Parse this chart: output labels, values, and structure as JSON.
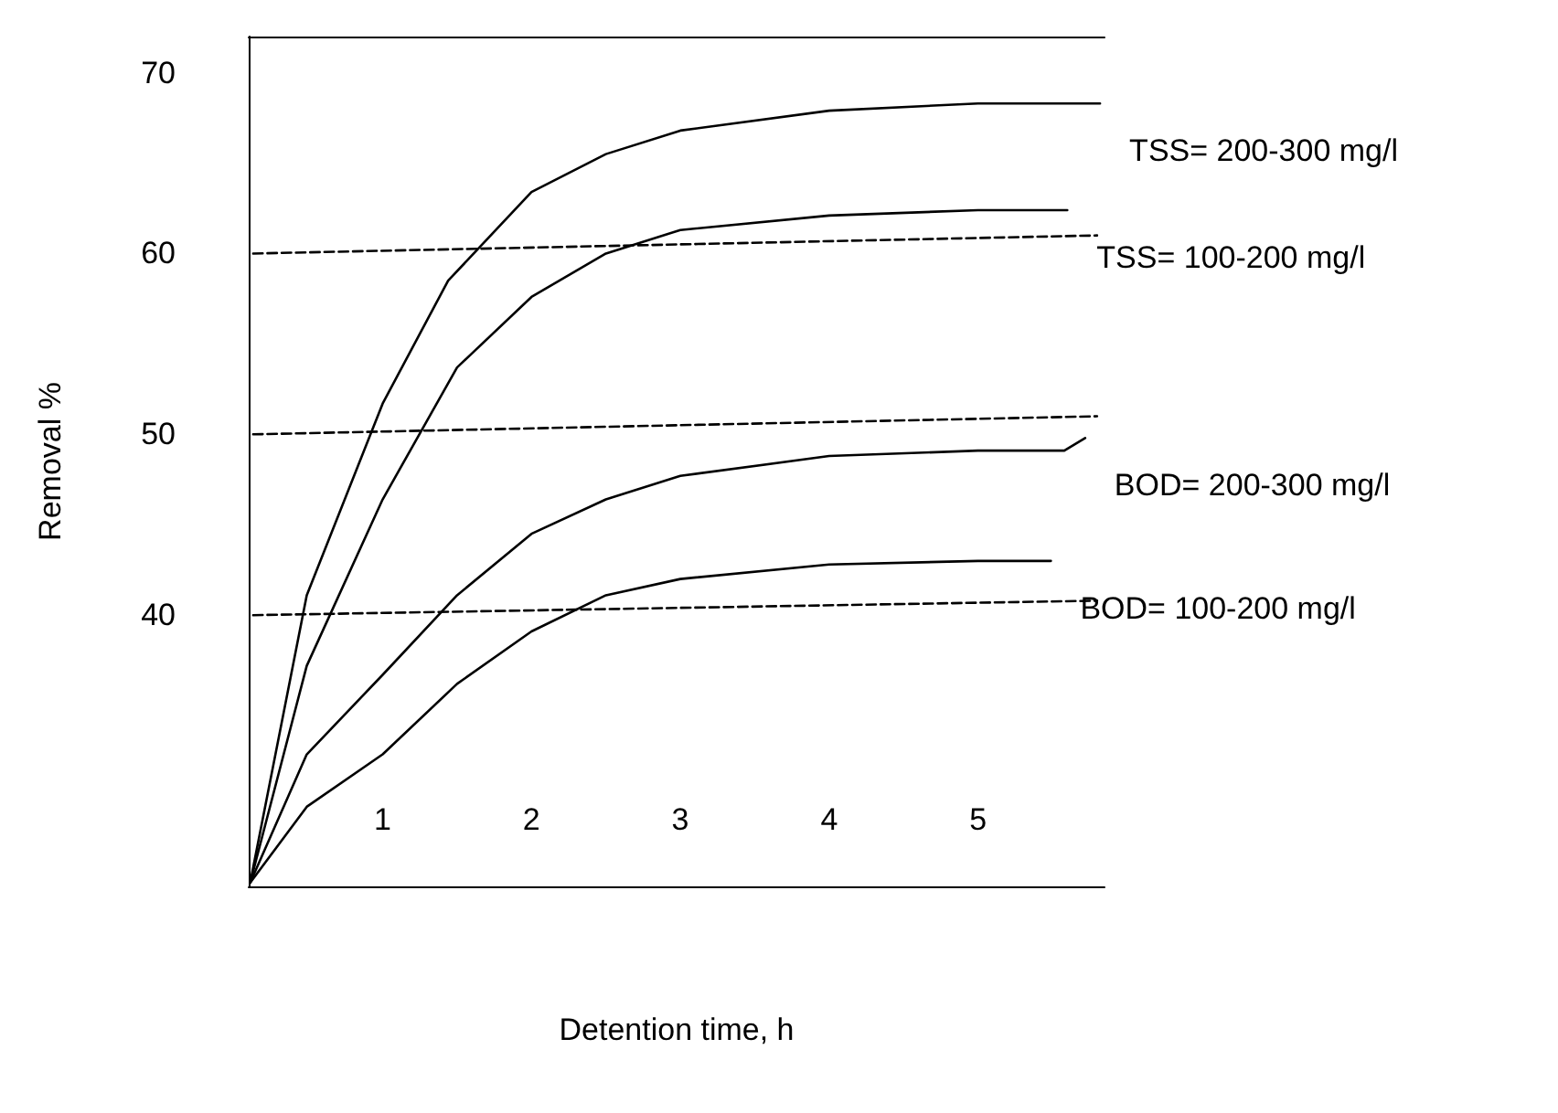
{
  "chart_data": {
    "type": "line",
    "xlabel": "Detention time, h",
    "ylabel": "Removal %",
    "xlim": [
      0.1,
      5.85
    ],
    "xticks": [
      1,
      2,
      3,
      4,
      5
    ],
    "ylim": [
      25,
      72
    ],
    "yticks": [
      40,
      50,
      60,
      70
    ],
    "grid": false,
    "legend": false,
    "marker": "none",
    "line_style": "solid",
    "series": [
      {
        "name": "TSS= 200-300 mg/l",
        "color": "#000000",
        "x": [
          0.11,
          0.49,
          1.0,
          1.44,
          2.0,
          2.5,
          3.0,
          4.0,
          5.0,
          5.82
        ],
        "values": [
          25.2,
          41.1,
          51.7,
          58.5,
          63.4,
          65.5,
          66.8,
          67.9,
          68.3,
          68.3
        ]
      },
      {
        "name": "TSS= 100-200 mg/l",
        "color": "#000000",
        "x": [
          0.11,
          0.49,
          1.0,
          1.5,
          2.0,
          2.5,
          3.0,
          4.0,
          5.0,
          5.6
        ],
        "values": [
          25.2,
          37.2,
          46.4,
          53.7,
          57.6,
          60.0,
          61.3,
          62.1,
          62.4,
          62.4
        ]
      },
      {
        "name": "BOD= 200-300 mg/l",
        "color": "#000000",
        "x": [
          0.11,
          0.49,
          1.0,
          1.5,
          2.0,
          2.5,
          3.0,
          4.0,
          5.0,
          5.58,
          5.72
        ],
        "values": [
          25.2,
          32.3,
          36.7,
          41.1,
          44.5,
          46.4,
          47.7,
          48.8,
          49.1,
          49.1,
          49.8
        ]
      },
      {
        "name": "BOD= 100-200 mg/l",
        "color": "#000000",
        "x": [
          0.11,
          0.49,
          1.0,
          1.5,
          2.0,
          2.5,
          3.0,
          4.0,
          5.0,
          5.49
        ],
        "values": [
          25.2,
          29.4,
          32.3,
          36.2,
          39.1,
          41.1,
          42.0,
          42.8,
          43.0,
          43.0
        ]
      },
      {
        "color": "#000000",
        "line_style": "dashed",
        "x": [
          0.13,
          5.8
        ],
        "values": [
          60,
          61
        ]
      },
      {
        "color": "#000000",
        "line_style": "dashed",
        "x": [
          0.13,
          5.8
        ],
        "values": [
          50,
          51
        ]
      },
      {
        "color": "#000000",
        "line_style": "dashed",
        "x": [
          0.13,
          5.8
        ],
        "values": [
          40,
          40.8
        ]
      }
    ]
  }
}
